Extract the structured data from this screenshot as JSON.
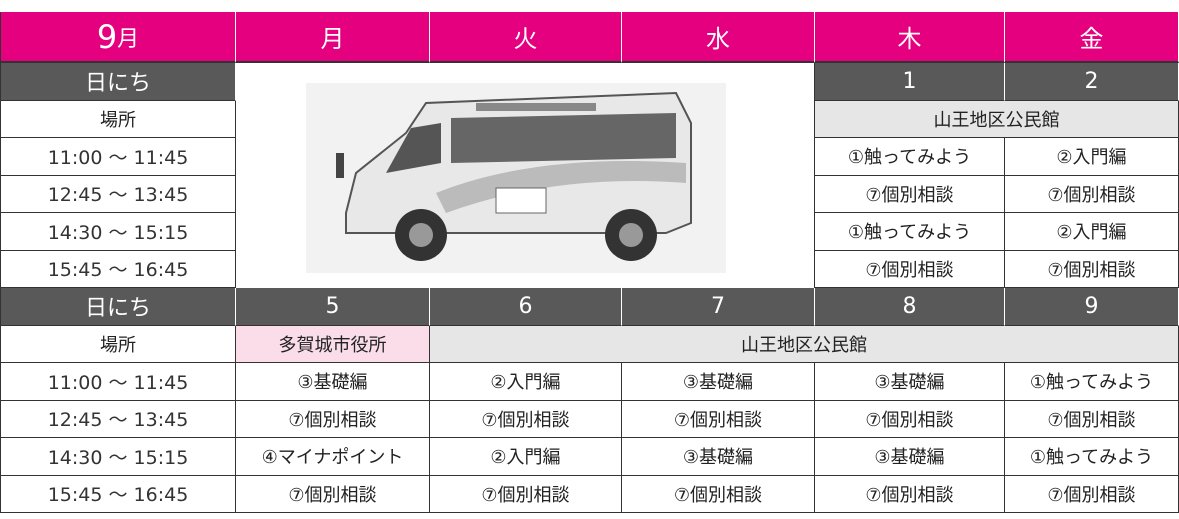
{
  "header": {
    "month_number": "9",
    "month_suffix": "月",
    "weekdays": [
      "月",
      "火",
      "水",
      "木",
      "金"
    ]
  },
  "weeks": [
    {
      "date_label": "日にち",
      "dates": [
        1,
        2
      ],
      "place_label": "場所",
      "places": [
        "山王地区公民館"
      ],
      "slots": [
        {
          "time": "11:00 ～ 11:45",
          "sessions": [
            "①触ってみよう",
            "②入門編"
          ]
        },
        {
          "time": "12:45 ～ 13:45",
          "sessions": [
            "⑦個別相談",
            "⑦個別相談"
          ]
        },
        {
          "time": "14:30 ～ 15:15",
          "sessions": [
            "①触ってみよう",
            "②入門編"
          ]
        },
        {
          "time": "15:45 ～ 16:45",
          "sessions": [
            "⑦個別相談",
            "⑦個別相談"
          ]
        }
      ]
    },
    {
      "date_label": "日にち",
      "dates": [
        5,
        6,
        7,
        8,
        9
      ],
      "place_label": "場所",
      "places": [
        "多賀城市役所",
        "山王地区公民館"
      ],
      "slots": [
        {
          "time": "11:00 ～ 11:45",
          "sessions": [
            "③基礎編",
            "②入門編",
            "③基礎編",
            "③基礎編",
            "①触ってみよう"
          ]
        },
        {
          "time": "12:45 ～ 13:45",
          "sessions": [
            "⑦個別相談",
            "⑦個別相談",
            "⑦個別相談",
            "⑦個別相談",
            "⑦個別相談"
          ]
        },
        {
          "time": "14:30 ～ 15:15",
          "sessions": [
            "④マイナポイント",
            "②入門編",
            "③基礎編",
            "③基礎編",
            "①触ってみよう"
          ]
        },
        {
          "time": "15:45 ～ 16:45",
          "sessions": [
            "⑦個別相談",
            "⑦個別相談",
            "⑦個別相談",
            "⑦個別相談",
            "⑦個別相談"
          ]
        }
      ]
    }
  ]
}
